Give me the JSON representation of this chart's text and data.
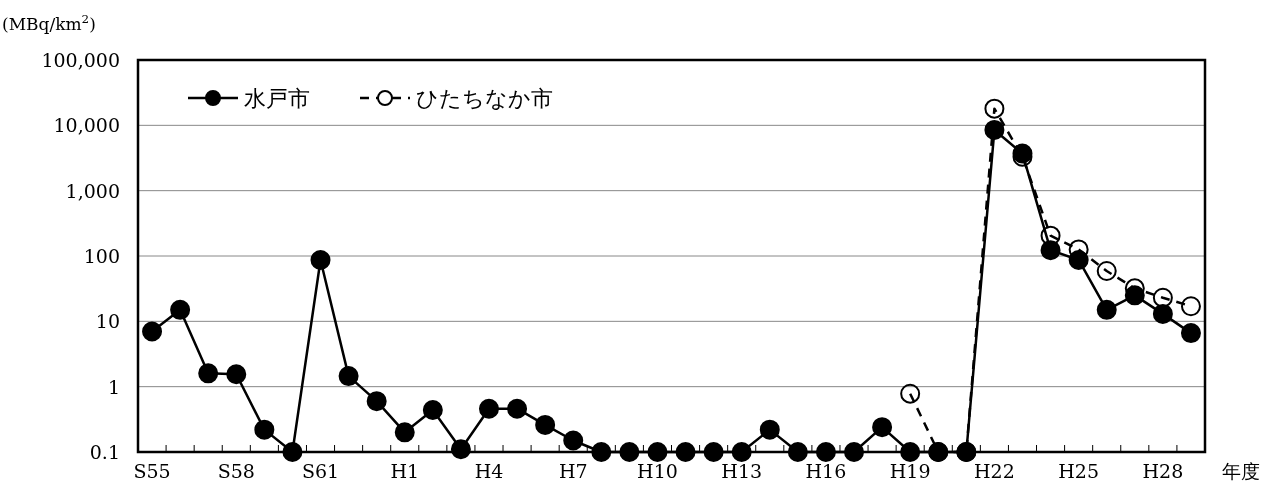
{
  "chart_data": {
    "type": "line",
    "ylabel": "(MBq/km$^{2}$)",
    "xlabel": "年度",
    "categories": [
      "S55",
      null,
      null,
      "S58",
      null,
      null,
      "S61",
      null,
      null,
      "H1",
      null,
      null,
      "H4",
      null,
      null,
      "H7",
      null,
      null,
      "H10",
      null,
      null,
      "H13",
      null,
      null,
      "H16",
      null,
      null,
      "H19",
      null,
      null,
      "H22",
      null,
      null,
      "H25",
      null,
      null,
      "H28",
      null
    ],
    "series": [
      {
        "name": "水戸市",
        "color": "#000000",
        "line_style": "solid",
        "values": [
          7,
          15,
          1.6,
          1.55,
          0.22,
          0.1,
          87,
          1.45,
          0.6,
          0.2,
          0.44,
          0.11,
          0.46,
          0.46,
          0.26,
          0.15,
          0.1,
          0.1,
          0.1,
          0.1,
          0.1,
          0.1,
          0.22,
          0.1,
          0.1,
          0.1,
          0.24,
          0.1,
          0.1,
          0.1,
          8500,
          3700,
          123,
          87,
          15,
          25,
          13,
          6.6
        ]
      },
      {
        "name": "ひたちなか市",
        "color": "#000000",
        "line_style": "dashed",
        "values": [
          null,
          null,
          null,
          null,
          null,
          null,
          null,
          null,
          null,
          null,
          null,
          null,
          null,
          null,
          null,
          null,
          null,
          null,
          null,
          null,
          null,
          null,
          null,
          null,
          null,
          null,
          null,
          0.78,
          0.1,
          0.1,
          18000,
          3300,
          205,
          126,
          59,
          32,
          23,
          17
        ]
      }
    ],
    "log": true,
    "ylim": [
      0.1,
      100000
    ],
    "yticks": [
      {
        "value": 0.1,
        "label": "0.1"
      },
      1,
      10,
      100,
      {
        "value": 1000,
        "label": "1,000"
      },
      {
        "value": 10000,
        "label": "10,000"
      },
      {
        "value": 100000,
        "label": "100,000"
      }
    ],
    "grid": "y",
    "legend": "top left",
    "marker": "circle"
  }
}
